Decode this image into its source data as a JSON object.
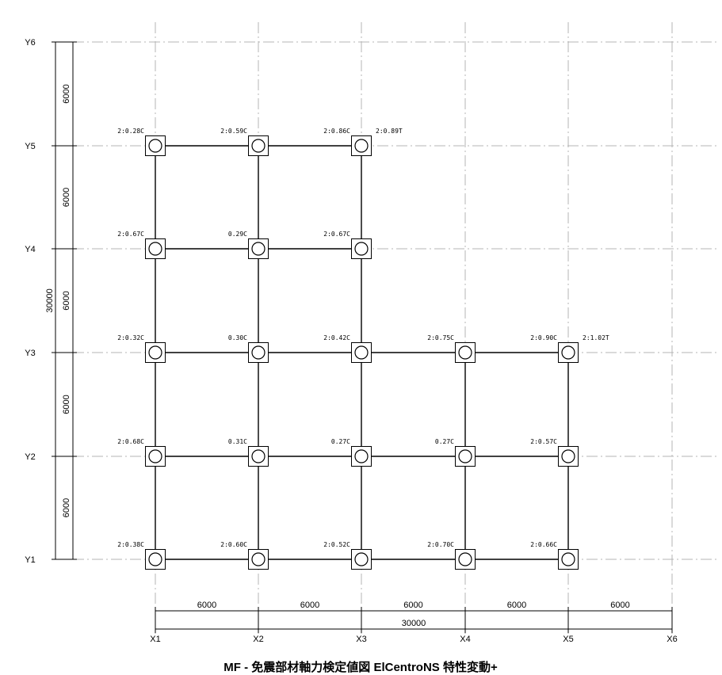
{
  "title": "MF - 免震部材軸力検定値図 ElCentroNS 特性変動+",
  "x_axes": [
    "X1",
    "X2",
    "X3",
    "X4",
    "X5",
    "X6"
  ],
  "y_axes": [
    "Y1",
    "Y2",
    "Y3",
    "Y4",
    "Y5",
    "Y6"
  ],
  "x_spans": [
    "6000",
    "6000",
    "6000",
    "6000",
    "6000"
  ],
  "x_total": "30000",
  "y_spans": [
    "6000",
    "6000",
    "6000",
    "6000",
    "6000"
  ],
  "y_total": "30000",
  "nodes": [
    {
      "xi": 0,
      "yi": 4,
      "label": "2:0.28C"
    },
    {
      "xi": 1,
      "yi": 4,
      "label": "2:0.59C"
    },
    {
      "xi": 2,
      "yi": 4,
      "label": "2:0.86C",
      "label2": "2:0.89T"
    },
    {
      "xi": 0,
      "yi": 3,
      "label": "2:0.67C"
    },
    {
      "xi": 1,
      "yi": 3,
      "label": "0.29C"
    },
    {
      "xi": 2,
      "yi": 3,
      "label": "2:0.67C"
    },
    {
      "xi": 0,
      "yi": 2,
      "label": "2:0.32C"
    },
    {
      "xi": 1,
      "yi": 2,
      "label": "0.30C"
    },
    {
      "xi": 2,
      "yi": 2,
      "label": "2:0.42C"
    },
    {
      "xi": 3,
      "yi": 2,
      "label": "2:0.75C"
    },
    {
      "xi": 4,
      "yi": 2,
      "label": "2:0.90C",
      "label2": "2:1.02T"
    },
    {
      "xi": 0,
      "yi": 1,
      "label": "2:0.68C"
    },
    {
      "xi": 1,
      "yi": 1,
      "label": "0.31C"
    },
    {
      "xi": 2,
      "yi": 1,
      "label": "0.27C"
    },
    {
      "xi": 3,
      "yi": 1,
      "label": "0.27C"
    },
    {
      "xi": 4,
      "yi": 1,
      "label": "2:0.57C"
    },
    {
      "xi": 0,
      "yi": 0,
      "label": "2:0.38C"
    },
    {
      "xi": 1,
      "yi": 0,
      "label": "2:0.60C"
    },
    {
      "xi": 2,
      "yi": 0,
      "label": "2:0.52C"
    },
    {
      "xi": 3,
      "yi": 0,
      "label": "2:0.70C"
    },
    {
      "xi": 4,
      "yi": 0,
      "label": "2:0.66C"
    }
  ],
  "beams": [
    [
      0,
      4,
      1,
      4
    ],
    [
      1,
      4,
      2,
      4
    ],
    [
      0,
      3,
      1,
      3
    ],
    [
      1,
      3,
      2,
      3
    ],
    [
      0,
      2,
      1,
      2
    ],
    [
      1,
      2,
      2,
      2
    ],
    [
      2,
      2,
      3,
      2
    ],
    [
      3,
      2,
      4,
      2
    ],
    [
      0,
      1,
      1,
      1
    ],
    [
      1,
      1,
      2,
      1
    ],
    [
      2,
      1,
      3,
      1
    ],
    [
      3,
      1,
      4,
      1
    ],
    [
      0,
      0,
      1,
      0
    ],
    [
      1,
      0,
      2,
      0
    ],
    [
      2,
      0,
      3,
      0
    ],
    [
      3,
      0,
      4,
      0
    ],
    [
      0,
      0,
      0,
      1
    ],
    [
      0,
      1,
      0,
      2
    ],
    [
      0,
      2,
      0,
      3
    ],
    [
      0,
      3,
      0,
      4
    ],
    [
      1,
      0,
      1,
      1
    ],
    [
      1,
      1,
      1,
      2
    ],
    [
      1,
      2,
      1,
      3
    ],
    [
      1,
      3,
      1,
      4
    ],
    [
      2,
      0,
      2,
      1
    ],
    [
      2,
      1,
      2,
      2
    ],
    [
      2,
      2,
      2,
      3
    ],
    [
      2,
      3,
      2,
      4
    ],
    [
      3,
      0,
      3,
      1
    ],
    [
      3,
      1,
      3,
      2
    ],
    [
      4,
      0,
      4,
      1
    ],
    [
      4,
      1,
      4,
      2
    ]
  ]
}
